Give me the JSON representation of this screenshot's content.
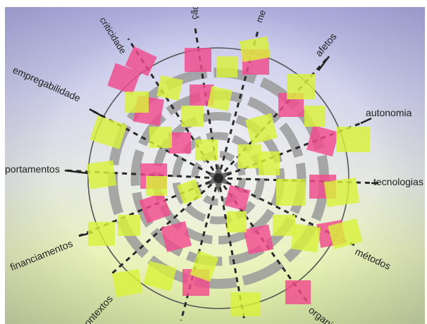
{
  "photo": {
    "subject": "radar wall with sticky notes",
    "background_top": "#b7b6e6",
    "background_bottom": "#d9e9a0",
    "note_colors": {
      "pink": "#f04a8c",
      "yellow": "#d9f23a"
    }
  },
  "axis_labels": {
    "criticidade": "criticidade",
    "cao": "ção",
    "me": "me",
    "afetos": "afetos",
    "autonomia": "autonomia",
    "tecnologias": "tecnologias",
    "metodos": "métodos",
    "organi": "organi",
    "contextos": "contextos",
    "financiamentos": "financiamentos",
    "portamentos": "portamentos",
    "empregabilidade": "empregabilidade"
  }
}
